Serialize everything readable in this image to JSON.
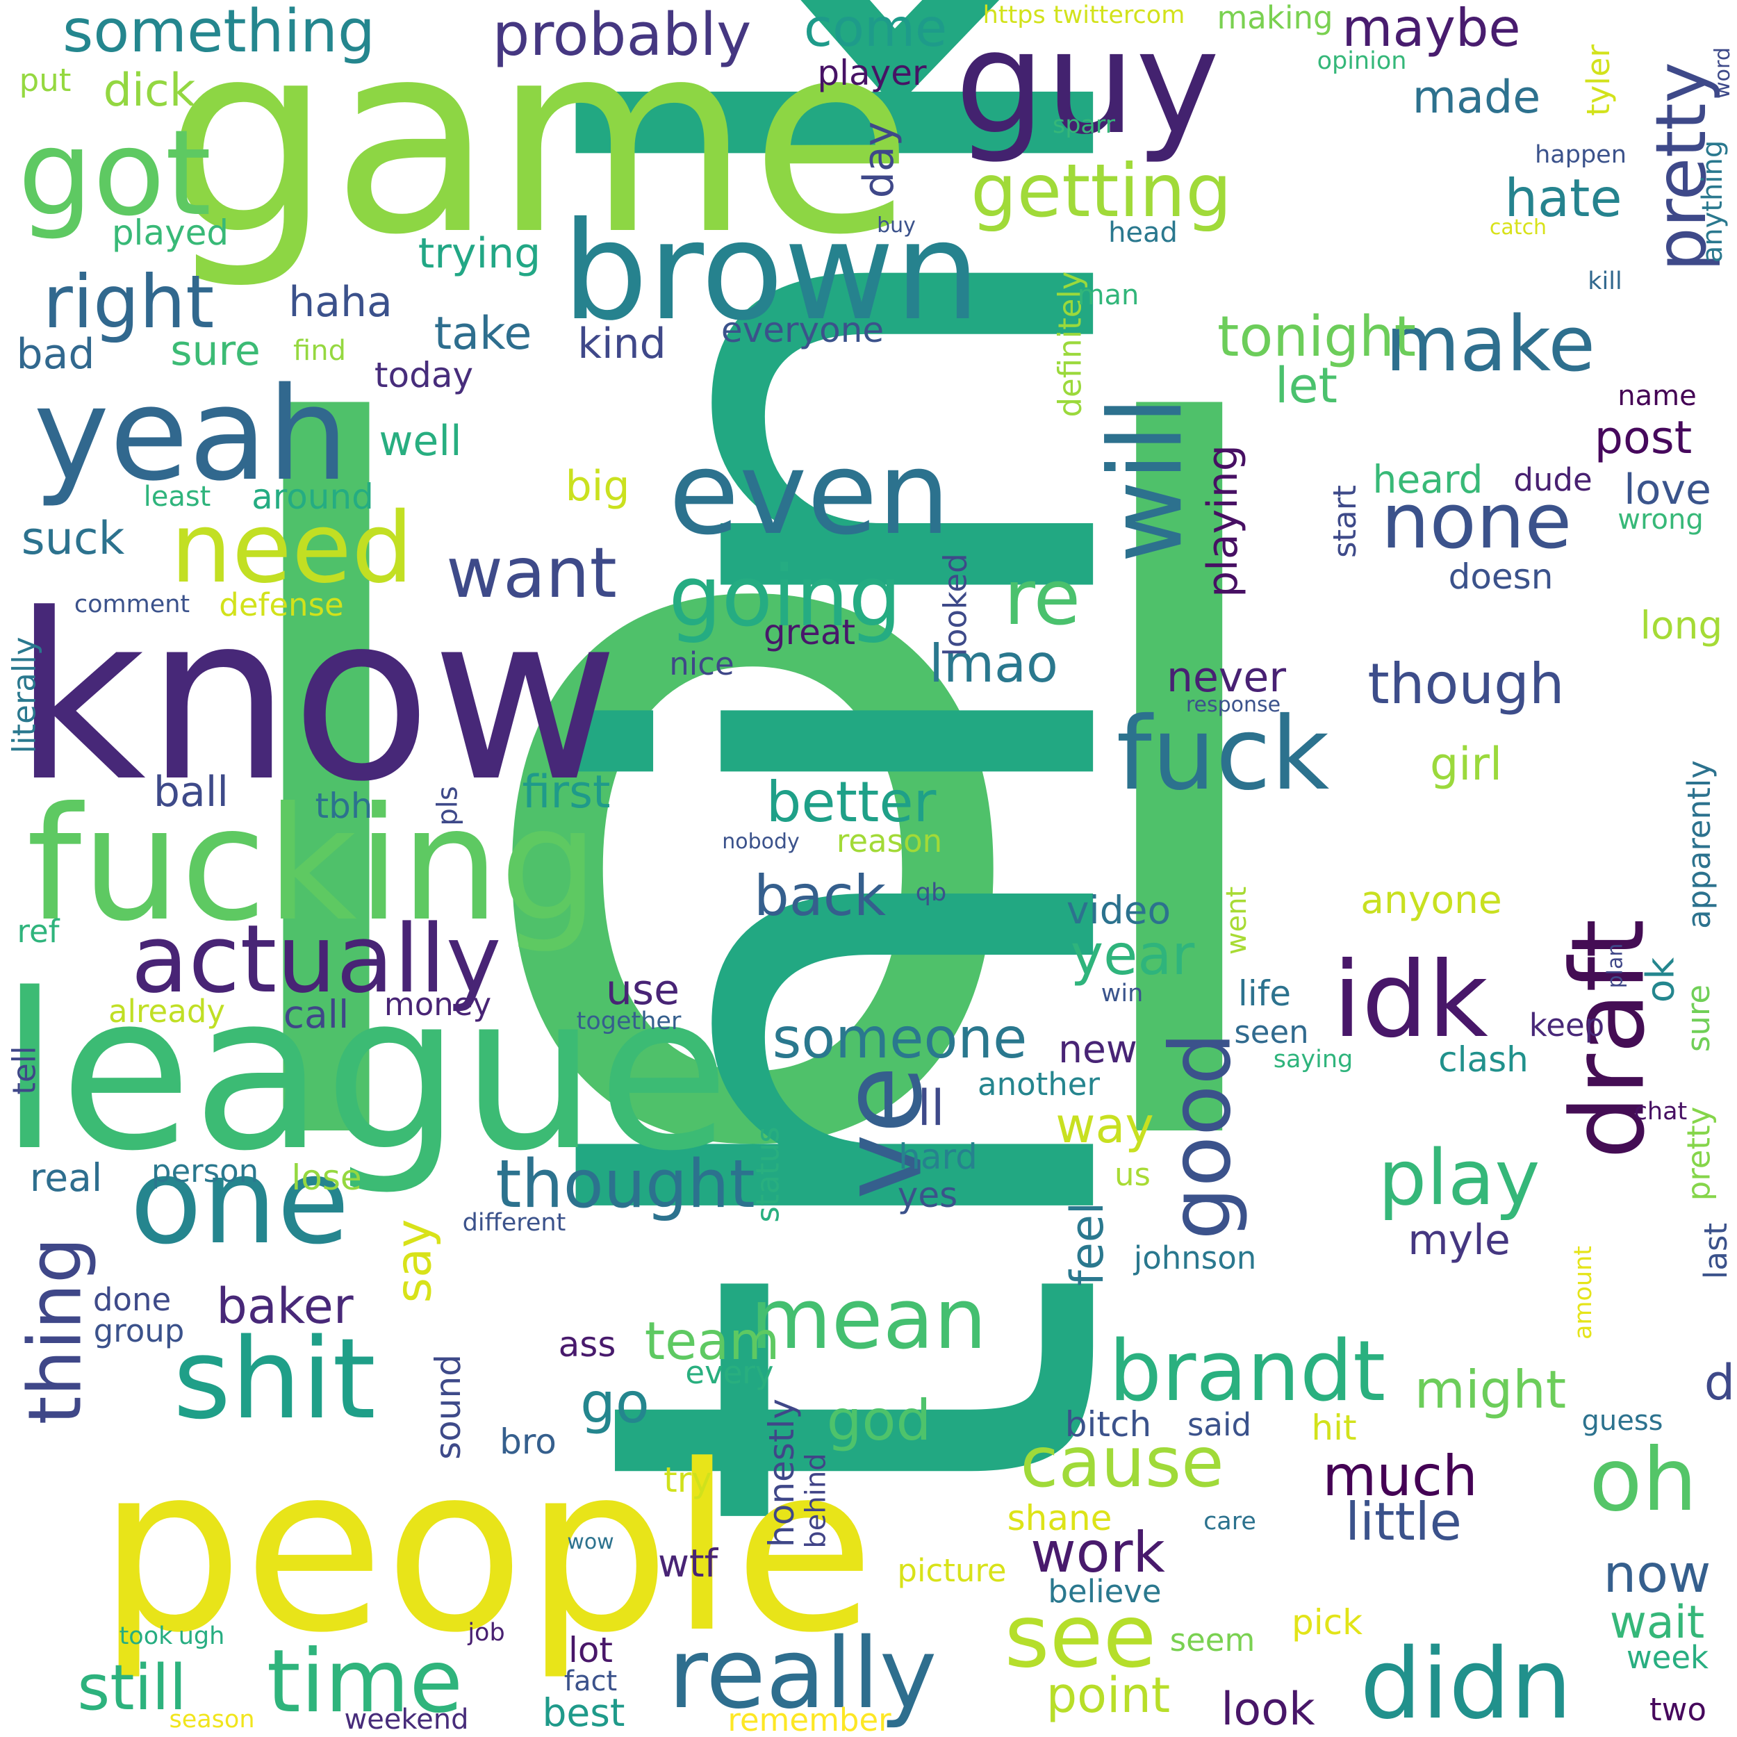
{
  "words": [
    {
      "text": "lol",
      "color": "#4fc16a"
    },
    {
      "text": "think",
      "color": "#22a882"
    },
    {
      "text": "game",
      "color": "#8dd644"
    },
    {
      "text": "know",
      "color": "#472878"
    },
    {
      "text": "people",
      "color": "#e8e419"
    },
    {
      "text": "league",
      "color": "#3cbb74"
    },
    {
      "text": "fucking",
      "color": "#5ec962"
    },
    {
      "text": "guy",
      "color": "#43226f"
    },
    {
      "text": "brown",
      "color": "#26828e"
    },
    {
      "text": "yeah",
      "color": "#31688e"
    },
    {
      "text": "even",
      "color": "#2c728e"
    },
    {
      "text": "got",
      "color": "#5ec962"
    },
    {
      "text": "one",
      "color": "#25858e"
    },
    {
      "text": "actually",
      "color": "#482475"
    },
    {
      "text": "need",
      "color": "#c2df23"
    },
    {
      "text": "shit",
      "color": "#1f9f88"
    },
    {
      "text": "fuck",
      "color": "#2c728e"
    },
    {
      "text": "draft",
      "color": "#440d54"
    },
    {
      "text": "idk",
      "color": "#481769"
    },
    {
      "text": "will",
      "color": "#2d718e"
    },
    {
      "text": "going",
      "color": "#25ac82"
    },
    {
      "text": "ve",
      "color": "#355f8d"
    },
    {
      "text": "good",
      "color": "#3b528b"
    },
    {
      "text": "really",
      "color": "#2e6e8e"
    },
    {
      "text": "didn",
      "color": "#21918c"
    },
    {
      "text": "time",
      "color": "#2fb47c"
    },
    {
      "text": "mean",
      "color": "#44bf70"
    },
    {
      "text": "brandt",
      "color": "#2ab07f"
    },
    {
      "text": "see",
      "color": "#b5de2b"
    },
    {
      "text": "getting",
      "color": "#a0da39"
    },
    {
      "text": "pretty",
      "color": "#3e4989"
    },
    {
      "text": "make",
      "color": "#2e6f8e"
    },
    {
      "text": "none",
      "color": "#3b528b"
    },
    {
      "text": "right",
      "color": "#31688e"
    },
    {
      "text": "want",
      "color": "#3e4a89"
    },
    {
      "text": "thought",
      "color": "#2c728e"
    },
    {
      "text": "play",
      "color": "#35b779"
    },
    {
      "text": "cause",
      "color": "#a0da39"
    },
    {
      "text": "oh",
      "color": "#54c568"
    },
    {
      "text": "thing",
      "color": "#3f4788"
    },
    {
      "text": "still",
      "color": "#2db27d"
    },
    {
      "text": "probably",
      "color": "#453781"
    },
    {
      "text": "something",
      "color": "#24868e"
    },
    {
      "text": "come",
      "color": "#1e9b8a"
    },
    {
      "text": "maybe",
      "color": "#481c6e"
    },
    {
      "text": "re",
      "color": "#4ac16d"
    },
    {
      "text": "better",
      "color": "#1fa088"
    },
    {
      "text": "back",
      "color": "#355f8d"
    },
    {
      "text": "someone",
      "color": "#2a788e"
    },
    {
      "text": "tonight",
      "color": "#6ccd5a"
    },
    {
      "text": "though",
      "color": "#3d4d8a"
    },
    {
      "text": "work",
      "color": "#481a6c"
    },
    {
      "text": "much",
      "color": "#440154"
    },
    {
      "text": "little",
      "color": "#3b528b"
    },
    {
      "text": "year",
      "color": "#2fb47c"
    },
    {
      "text": "go",
      "color": "#24868e"
    },
    {
      "text": "team",
      "color": "#5ec962"
    },
    {
      "text": "god",
      "color": "#4ec36b"
    },
    {
      "text": "baker",
      "color": "#482878"
    },
    {
      "text": "lmao",
      "color": "#2a788e"
    },
    {
      "text": "hate",
      "color": "#25838e"
    },
    {
      "text": "made",
      "color": "#2d718e"
    },
    {
      "text": "point",
      "color": "#b8de29"
    },
    {
      "text": "look",
      "color": "#481668"
    },
    {
      "text": "now",
      "color": "#355f8d"
    },
    {
      "text": "wait",
      "color": "#35b779"
    },
    {
      "text": "might",
      "color": "#6ccd5a"
    },
    {
      "text": "playing",
      "color": "#471063"
    },
    {
      "text": "never",
      "color": "#482173"
    },
    {
      "text": "girl",
      "color": "#9bd93c"
    },
    {
      "text": "first",
      "color": "#1f9a8a"
    },
    {
      "text": "ball",
      "color": "#3e4a89"
    },
    {
      "text": "way",
      "color": "#c8e020"
    },
    {
      "text": "feel",
      "color": "#2a788e"
    },
    {
      "text": "say",
      "color": "#d8e219"
    },
    {
      "text": "post",
      "color": "#46085c"
    },
    {
      "text": "love",
      "color": "#3a548c"
    },
    {
      "text": "take",
      "color": "#2e6e8e"
    },
    {
      "text": "trying",
      "color": "#22a785"
    },
    {
      "text": "haha",
      "color": "#3b518b"
    },
    {
      "text": "kind",
      "color": "#3f4889"
    },
    {
      "text": "everyone",
      "color": "#3b528b"
    },
    {
      "text": "day",
      "color": "#3f4889"
    },
    {
      "text": "sure",
      "color": "#3cbb75"
    },
    {
      "text": "bad",
      "color": "#31688e"
    },
    {
      "text": "well",
      "color": "#28ae80"
    },
    {
      "text": "around",
      "color": "#25ac82"
    },
    {
      "text": "suck",
      "color": "#2c728e"
    },
    {
      "text": "today",
      "color": "#472d7b"
    },
    {
      "text": "played",
      "color": "#38b977"
    },
    {
      "text": "dick",
      "color": "#93d741"
    },
    {
      "text": "put",
      "color": "#95d840"
    },
    {
      "text": "player",
      "color": "#471365"
    },
    {
      "text": "let",
      "color": "#4ac16d"
    },
    {
      "text": "big",
      "color": "#cae11f"
    },
    {
      "text": "heard",
      "color": "#38b977"
    },
    {
      "text": "dude",
      "color": "#482071"
    },
    {
      "text": "doesn",
      "color": "#3b528b"
    },
    {
      "text": "start",
      "color": "#3e4a89"
    },
    {
      "text": "long",
      "color": "#a5db36"
    },
    {
      "text": "defense",
      "color": "#d2e21b"
    },
    {
      "text": "great",
      "color": "#48186a"
    },
    {
      "text": "nice",
      "color": "#3f4788"
    },
    {
      "text": "looked",
      "color": "#3e4a89"
    },
    {
      "text": "use",
      "color": "#482475"
    },
    {
      "text": "money",
      "color": "#482475"
    },
    {
      "text": "call",
      "color": "#3f4788"
    },
    {
      "text": "already",
      "color": "#c0df25"
    },
    {
      "text": "video",
      "color": "#2c728e"
    },
    {
      "text": "life",
      "color": "#2c728e"
    },
    {
      "text": "seen",
      "color": "#306a8e"
    },
    {
      "text": "keep",
      "color": "#482878"
    },
    {
      "text": "new",
      "color": "#482475"
    },
    {
      "text": "another",
      "color": "#25858e"
    },
    {
      "text": "ll",
      "color": "#3e4989"
    },
    {
      "text": "hard",
      "color": "#26828e"
    },
    {
      "text": "yes",
      "color": "#3b528b"
    },
    {
      "text": "real",
      "color": "#2e6e8e"
    },
    {
      "text": "person",
      "color": "#2a788e"
    },
    {
      "text": "lose",
      "color": "#95d840"
    },
    {
      "text": "done",
      "color": "#3e4a89"
    },
    {
      "text": "group",
      "color": "#3b528b"
    },
    {
      "text": "ass",
      "color": "#481a6c"
    },
    {
      "text": "every",
      "color": "#29af7f"
    },
    {
      "text": "bro",
      "color": "#355f8d"
    },
    {
      "text": "sound",
      "color": "#3e4a89"
    },
    {
      "text": "bitch",
      "color": "#3b528b"
    },
    {
      "text": "said",
      "color": "#3b528b"
    },
    {
      "text": "hit",
      "color": "#d2e21b"
    },
    {
      "text": "guess",
      "color": "#2c728e"
    },
    {
      "text": "myle",
      "color": "#453781"
    },
    {
      "text": "johnson",
      "color": "#2a788e"
    },
    {
      "text": "us",
      "color": "#a8db34"
    },
    {
      "text": "clash",
      "color": "#21918c"
    },
    {
      "text": "ok",
      "color": "#24868e"
    },
    {
      "text": "apparently",
      "color": "#2c728e"
    },
    {
      "text": "sure",
      "color": "#70cf57"
    },
    {
      "text": "pretty",
      "color": "#85d54a"
    },
    {
      "text": "last",
      "color": "#3b528b"
    },
    {
      "text": "d",
      "color": "#3e4989"
    },
    {
      "text": "try",
      "color": "#d0e11c"
    },
    {
      "text": "shane",
      "color": "#dde318"
    },
    {
      "text": "picture",
      "color": "#d8e219"
    },
    {
      "text": "believe",
      "color": "#2a788e"
    },
    {
      "text": "honestly",
      "color": "#3f4788"
    },
    {
      "text": "behind",
      "color": "#414487"
    },
    {
      "text": "wtf",
      "color": "#482475"
    },
    {
      "text": "lot",
      "color": "#481769"
    },
    {
      "text": "fact",
      "color": "#3b528b"
    },
    {
      "text": "best",
      "color": "#1f9a8a"
    },
    {
      "text": "remember",
      "color": "#fde725"
    },
    {
      "text": "pick",
      "color": "#e2e418"
    },
    {
      "text": "seem",
      "color": "#7ad151"
    },
    {
      "text": "week",
      "color": "#28ae80"
    },
    {
      "text": "two",
      "color": "#46085c"
    },
    {
      "text": "weekend",
      "color": "#472c7a"
    },
    {
      "text": "season",
      "color": "#f1e51d"
    },
    {
      "text": "job",
      "color": "#482071"
    },
    {
      "text": "took",
      "color": "#27ad81"
    },
    {
      "text": "ugh",
      "color": "#27ad81"
    },
    {
      "text": "wow",
      "color": "#2c728e"
    },
    {
      "text": "care",
      "color": "#2c728e"
    },
    {
      "text": "amount",
      "color": "#e5e419"
    },
    {
      "text": "chat",
      "color": "#471063"
    },
    {
      "text": "saying",
      "color": "#2fb47c"
    },
    {
      "text": "plan",
      "color": "#3f4788"
    },
    {
      "text": "win",
      "color": "#3a548c"
    },
    {
      "text": "went",
      "color": "#a8db34"
    },
    {
      "text": "status",
      "color": "#29af7f"
    },
    {
      "text": "different",
      "color": "#3b528b"
    },
    {
      "text": "together",
      "color": "#355f8d"
    },
    {
      "text": "comment",
      "color": "#3b528b"
    },
    {
      "text": "literally",
      "color": "#2a788e"
    },
    {
      "text": "tell",
      "color": "#3f4788"
    },
    {
      "text": "ref",
      "color": "#2fb47c"
    },
    {
      "text": "tbh",
      "color": "#2c728e"
    },
    {
      "text": "pls",
      "color": "#3e4989"
    },
    {
      "text": "nobody",
      "color": "#3b528b"
    },
    {
      "text": "reason",
      "color": "#a2da37"
    },
    {
      "text": "qb",
      "color": "#3b528b"
    },
    {
      "text": "least",
      "color": "#2fb47c"
    },
    {
      "text": "find",
      "color": "#95d840"
    },
    {
      "text": "buy",
      "color": "#3b528b"
    },
    {
      "text": "definitely",
      "color": "#9bd93c"
    },
    {
      "text": "man",
      "color": "#32b67a"
    },
    {
      "text": "head",
      "color": "#2a788e"
    },
    {
      "text": "sparr",
      "color": "#35b779"
    },
    {
      "text": "https twittercom",
      "color": "#d2e21b"
    },
    {
      "text": "making",
      "color": "#7ad151"
    },
    {
      "text": "opinion",
      "color": "#35b779"
    },
    {
      "text": "tyler",
      "color": "#d2e21b"
    },
    {
      "text": "word",
      "color": "#3e4a89"
    },
    {
      "text": "anything",
      "color": "#2a788e"
    },
    {
      "text": "happen",
      "color": "#3b528b"
    },
    {
      "text": "catch",
      "color": "#d8e219"
    },
    {
      "text": "kill",
      "color": "#31688e"
    },
    {
      "text": "name",
      "color": "#440154"
    },
    {
      "text": "wrong",
      "color": "#37b878"
    },
    {
      "text": "response",
      "color": "#3b528b"
    },
    {
      "text": "anyone",
      "color": "#c8e020"
    }
  ]
}
